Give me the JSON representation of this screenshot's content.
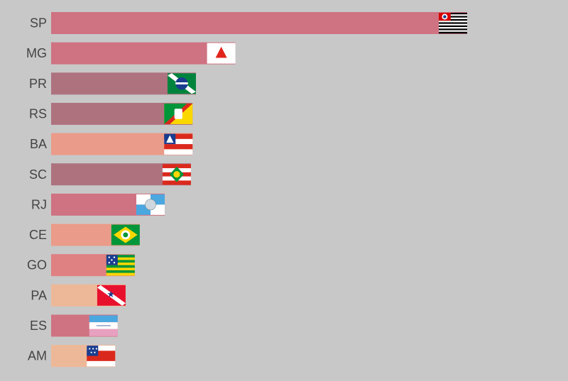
{
  "chart_data": {
    "type": "bar",
    "orientation": "horizontal",
    "title": "",
    "xlabel": "",
    "ylabel": "",
    "grid": false,
    "legend": "none",
    "xlim": [
      0,
      100
    ],
    "categories": [
      "SP",
      "MG",
      "PR",
      "RS",
      "BA",
      "SC",
      "RJ",
      "CE",
      "GO",
      "PA",
      "ES",
      "AM"
    ],
    "values": [
      100,
      44.3,
      34.8,
      34.0,
      34.0,
      33.6,
      27.3,
      21.3,
      20.1,
      17.9,
      16.0,
      15.4
    ],
    "bar_colors": [
      "#cf7282",
      "#cf7282",
      "#ae727f",
      "#ae727f",
      "#eb9b89",
      "#ae727f",
      "#cf7282",
      "#eb9b89",
      "#df8082",
      "#edb898",
      "#cf7282",
      "#edb898"
    ],
    "flag_icons": [
      "sp-flag-icon",
      "mg-flag-icon",
      "pr-flag-icon",
      "rs-flag-icon",
      "ba-flag-icon",
      "sc-flag-icon",
      "rj-flag-icon",
      "ce-flag-icon",
      "go-flag-icon",
      "pa-flag-icon",
      "es-flag-icon",
      "am-flag-icon"
    ]
  },
  "colors": {
    "background": "#c8c8c8",
    "label": "#444444"
  }
}
